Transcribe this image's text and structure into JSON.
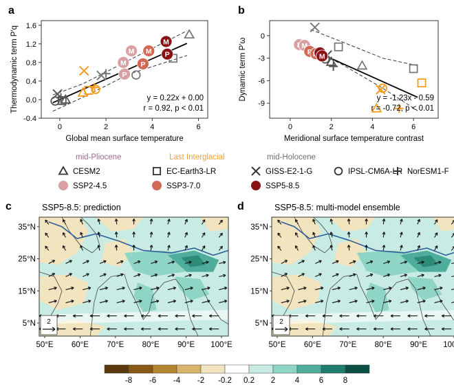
{
  "chart_data": [
    {
      "panel": "a",
      "type": "scatter",
      "xlabel": "Global mean surface temperature",
      "ylabel": "Thermodynamic term P′q",
      "xlim": [
        -0.8,
        6.4
      ],
      "ylim": [
        -0.4,
        1.7
      ],
      "xticks": [
        0,
        2,
        4,
        6
      ],
      "yticks": [
        -0.4,
        0.0,
        0.4,
        0.8,
        1.2,
        1.6
      ],
      "annotation": [
        "y = 0.22x + 0.00",
        "r = 0.92, p < 0.01"
      ],
      "regression": {
        "slope": 0.22,
        "intercept": 0.0
      },
      "ci_upper": [
        [
          -0.3,
          0.1
        ],
        [
          1.0,
          0.34
        ],
        [
          3.0,
          0.85
        ],
        [
          5.5,
          1.48
        ]
      ],
      "ci_lower": [
        [
          -0.3,
          -0.25
        ],
        [
          1.0,
          0.05
        ],
        [
          3.0,
          0.55
        ],
        [
          5.5,
          0.95
        ]
      ],
      "points": [
        {
          "x": -0.2,
          "y": -0.03,
          "model": "IPSL-CM6A-LR",
          "period": "mid-Holocene"
        },
        {
          "x": -0.1,
          "y": 0.12,
          "model": "GISS-E2-1-G",
          "period": "mid-Holocene"
        },
        {
          "x": 0.05,
          "y": 0.04,
          "model": "NorESM1-F",
          "period": "mid-Holocene"
        },
        {
          "x": 0.1,
          "y": -0.02,
          "model": "EC-Earth3-LR",
          "period": "mid-Holocene"
        },
        {
          "x": 0.25,
          "y": 0.0,
          "model": "CESM2",
          "period": "mid-Holocene"
        },
        {
          "x": 1.0,
          "y": 0.15,
          "model": "CESM2",
          "period": "Last Interglacial"
        },
        {
          "x": 1.05,
          "y": 0.62,
          "model": "GISS-E2-1-G",
          "period": "Last Interglacial"
        },
        {
          "x": 1.25,
          "y": 0.2,
          "model": "EC-Earth3-LR",
          "period": "Last Interglacial"
        },
        {
          "x": 1.55,
          "y": 0.22,
          "model": "IPSL-CM6A-LR",
          "period": "Last Interglacial"
        },
        {
          "x": 1.5,
          "y": 0.26,
          "model": "NorESM1-F",
          "period": "Last Interglacial"
        },
        {
          "x": 1.8,
          "y": 0.52,
          "model": "GISS-E2-1-G",
          "period": "mid-Pliocene"
        },
        {
          "x": 2.0,
          "y": 0.56,
          "model": "NorESM1-F",
          "period": "mid-Pliocene"
        },
        {
          "x": 3.3,
          "y": 0.53,
          "model": "IPSL-CM6A-LR",
          "period": "mid-Pliocene"
        },
        {
          "x": 4.9,
          "y": 0.89,
          "model": "EC-Earth3-LR",
          "period": "mid-Pliocene"
        },
        {
          "x": 5.6,
          "y": 1.4,
          "model": "CESM2",
          "period": "mid-Pliocene"
        },
        {
          "x": 2.8,
          "y": 0.55,
          "letter": "P",
          "scenario": "SSP2-4.5"
        },
        {
          "x": 2.75,
          "y": 0.8,
          "letter": "M",
          "scenario": "SSP2-4.5"
        },
        {
          "x": 3.1,
          "y": 1.05,
          "letter": "M",
          "scenario": "SSP2-4.5"
        },
        {
          "x": 3.6,
          "y": 0.77,
          "letter": "P",
          "scenario": "SSP3-7.0"
        },
        {
          "x": 3.85,
          "y": 1.05,
          "letter": "M",
          "scenario": "SSP3-7.0"
        },
        {
          "x": 4.65,
          "y": 0.98,
          "letter": "P",
          "scenario": "SSP5-8.5"
        },
        {
          "x": 4.6,
          "y": 1.25,
          "letter": "M",
          "scenario": "SSP5-8.5"
        }
      ]
    },
    {
      "panel": "b",
      "type": "scatter",
      "xlabel": "Meridional surface temperature contrast",
      "ylabel": "Dynamic term P′ω",
      "xlim": [
        -1.0,
        7.2
      ],
      "ylim": [
        -11,
        2
      ],
      "xticks": [
        0,
        2,
        4,
        6
      ],
      "yticks": [
        0,
        -3,
        -6,
        -9
      ],
      "annotation": [
        "y = -1.23x - 0.59",
        "r = -0.72, p < 0.01"
      ],
      "regression": {
        "slope": -1.23,
        "intercept": -0.59
      },
      "ci_upper": [
        [
          1.0,
          0.8
        ],
        [
          2.5,
          -0.8
        ],
        [
          4.5,
          -3.0
        ],
        [
          6.2,
          -4.0
        ]
      ],
      "ci_lower": [
        [
          1.0,
          -1.8
        ],
        [
          2.5,
          -3.8
        ],
        [
          4.5,
          -7.0
        ],
        [
          6.2,
          -10.0
        ]
      ],
      "points": [
        {
          "x": 1.2,
          "y": 1.1,
          "model": "GISS-E2-1-G",
          "period": "mid-Pliocene"
        },
        {
          "x": 2.35,
          "y": -1.5,
          "model": "EC-Earth3-LR",
          "period": "mid-Pliocene"
        },
        {
          "x": 3.5,
          "y": -4.0,
          "model": "CESM2",
          "period": "mid-Pliocene"
        },
        {
          "x": 6.0,
          "y": -4.4,
          "model": "EC-Earth3-LR",
          "period": "mid-Pliocene"
        },
        {
          "x": 1.7,
          "y": -3.1,
          "model": "IPSL-CM6A-LR",
          "period": "mid-Holocene"
        },
        {
          "x": 2.0,
          "y": -3.5,
          "model": "CESM2",
          "period": "mid-Holocene"
        },
        {
          "x": 2.1,
          "y": -4.1,
          "model": "NorESM1-F",
          "period": "mid-Holocene"
        },
        {
          "x": 1.8,
          "y": -2.6,
          "model": "GISS-E2-1-G",
          "period": "mid-Holocene"
        },
        {
          "x": 4.5,
          "y": -7.0,
          "model": "IPSL-CM6A-LR",
          "period": "Last Interglacial"
        },
        {
          "x": 4.4,
          "y": -7.2,
          "model": "GISS-E2-1-G",
          "period": "Last Interglacial"
        },
        {
          "x": 6.4,
          "y": -6.3,
          "model": "EC-Earth3-LR",
          "period": "Last Interglacial"
        },
        {
          "x": 4.2,
          "y": -9.7,
          "model": "CESM2",
          "period": "Last Interglacial"
        },
        {
          "x": 5.3,
          "y": -9.7,
          "model": "NorESM1-F",
          "period": "Last Interglacial"
        },
        {
          "x": 0.45,
          "y": -1.2,
          "letter": "P",
          "scenario": "SSP2-4.5"
        },
        {
          "x": 0.7,
          "y": -1.3,
          "letter": "M",
          "scenario": "SSP2-4.5"
        },
        {
          "x": 0.95,
          "y": -2.1,
          "letter": "P",
          "scenario": "SSP3-7.0"
        },
        {
          "x": 1.25,
          "y": -2.4,
          "letter": "M",
          "scenario": "SSP3-7.0"
        },
        {
          "x": 1.45,
          "y": -2.3,
          "letter": "P",
          "scenario": "SSP5-8.5"
        },
        {
          "x": 1.55,
          "y": -2.7,
          "letter": "M",
          "scenario": "SSP5-8.5"
        }
      ]
    },
    {
      "panel": "c",
      "type": "heatmap",
      "title": "SSP5-8.5: prediction",
      "xticks": [
        "50°E",
        "60°E",
        "70°E",
        "80°E",
        "90°E",
        "100°E"
      ],
      "yticks": [
        "5°N",
        "15°N",
        "25°N",
        "35°N"
      ],
      "vector_key": "2"
    },
    {
      "panel": "d",
      "type": "heatmap",
      "title": "SSP5-8.5: multi-model ensemble",
      "xticks": [
        "50°E",
        "60°E",
        "70°E",
        "80°E",
        "90°E",
        "100°E"
      ],
      "yticks": [
        "5°N",
        "15°N",
        "25°N",
        "35°N"
      ],
      "vector_key": "2"
    }
  ],
  "panel_labels": [
    "a",
    "b",
    "c",
    "d"
  ],
  "legend": {
    "periods": [
      {
        "label": "mid-Pliocene",
        "color": "#9b6b86"
      },
      {
        "label": "Last Interglacial",
        "color": "#f5a02a"
      },
      {
        "label": "mid-Holocene",
        "color": "#6e6e6e"
      }
    ],
    "models": [
      {
        "label": "CESM2",
        "symbol": "triangle"
      },
      {
        "label": "EC-Earth3-LR",
        "symbol": "square"
      },
      {
        "label": "GISS-E2-1-G",
        "symbol": "x"
      },
      {
        "label": "IPSL-CM6A-LR",
        "symbol": "circle"
      },
      {
        "label": "NorESM1-F",
        "symbol": "plus"
      }
    ],
    "scenarios": [
      {
        "label": "SSP2-4.5",
        "color": "#d9a0a3"
      },
      {
        "label": "SSP3-7.0",
        "color": "#d06a55"
      },
      {
        "label": "SSP5-8.5",
        "color": "#8b1212"
      }
    ]
  },
  "colorbar": {
    "labels": [
      "-8",
      "-6",
      "-4",
      "-2",
      "-0.2",
      "0.2",
      "2",
      "4",
      "6",
      "8"
    ],
    "colors": [
      "#5a3a0c",
      "#8a5a14",
      "#b58430",
      "#d9b46a",
      "#f2e4be",
      "#ffffff",
      "#c7ebe3",
      "#8fd5c5",
      "#4fae9b",
      "#1e7d6c",
      "#0a4e44"
    ]
  },
  "colors": {
    "mid_pliocene": "#7a7a7a",
    "last_interglacial": "#f39c1f",
    "mid_holocene": "#555555",
    "ocean": "#c8ece3",
    "dry": "#f2e4be",
    "wet_strong": "#2d8c79",
    "coast": "#444444",
    "tibet_contour": "#2f5f9a"
  }
}
